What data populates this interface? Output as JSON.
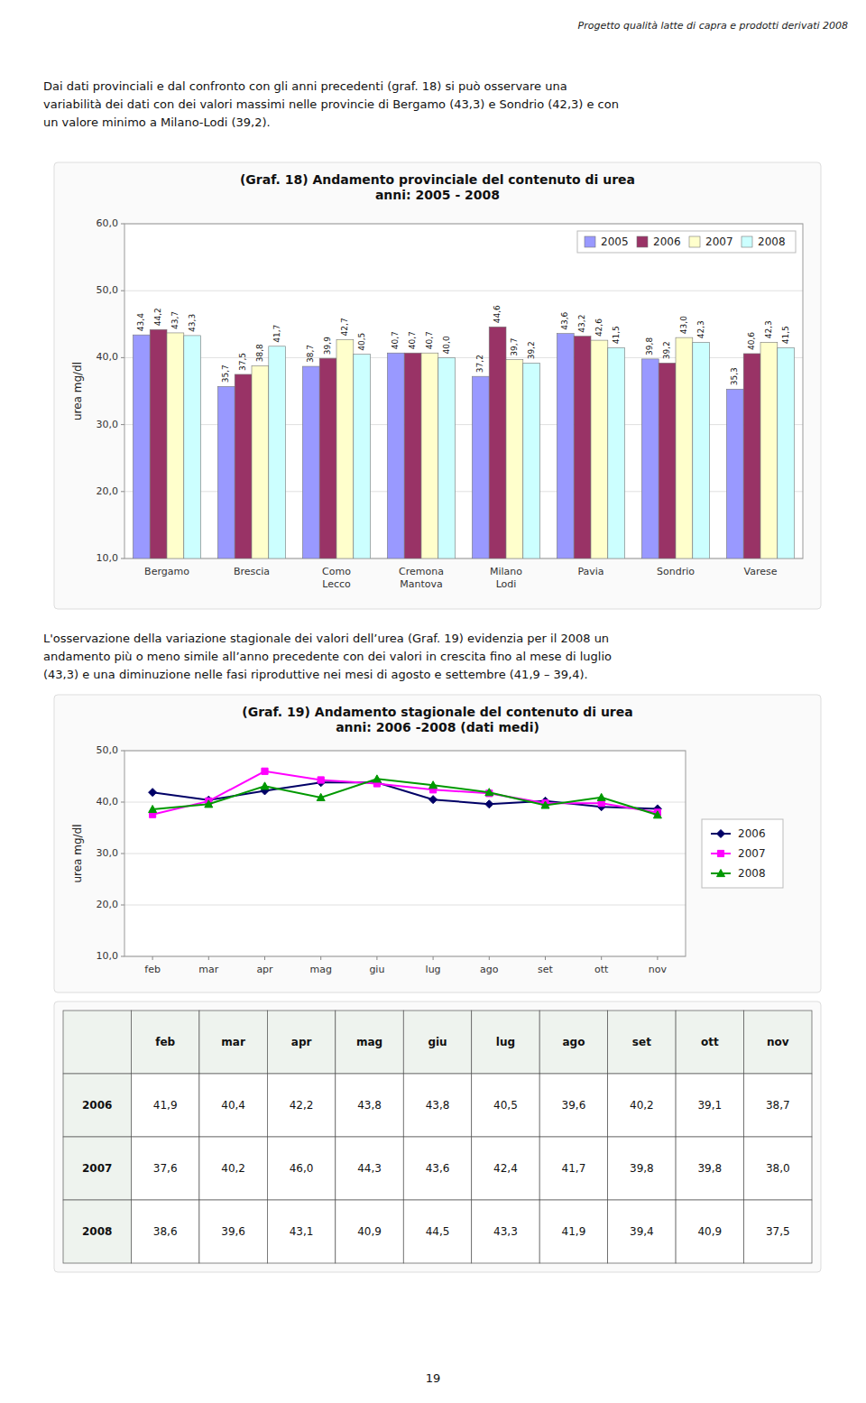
{
  "page_title": "Progetto qualità latte di capra e prodotti derivati 2008",
  "paragraphs": [
    "Dai dati provinciali e dal confronto con gli anni precedenti (graf. 18) si può osservare una\nvariabilità dei dati con dei valori massimi nelle provincie di Bergamo (43,3) e Sondrio (42,3) e con\nun valore minimo a Milano-Lodi (39,2).",
    "L'osservazione della variazione stagionale dei valori dell’urea (Graf. 19) evidenzia per il 2008 un\nandamento più o meno simile all’anno precedente con dei valori in crescita fino al mese di luglio\n(43,3) e una diminuzione nelle fasi riproduttive nei mesi di agosto e settembre (41,9 – 39,4)."
  ],
  "page_number": "19",
  "chart_data": [
    {
      "type": "bar",
      "title": "(Graf. 18)  Andamento provinciale del contenuto di urea\nanni: 2005 - 2008",
      "y_label": "urea mg/dl",
      "categories": [
        "Bergamo",
        "Brescia",
        "Como\nLecco",
        "Cremona\nMantova",
        "Milano\nLodi",
        "Pavia",
        "Sondrio",
        "Varese"
      ],
      "series": [
        {
          "name": "2005",
          "color": "#9999ff",
          "values": [
            43.4,
            35.7,
            38.7,
            40.7,
            37.2,
            43.6,
            39.8,
            35.3
          ],
          "value_labels": [
            "43,4",
            "35,7",
            "38,7",
            "40,7",
            "37,2",
            "43,6",
            "39,8",
            "35,3"
          ]
        },
        {
          "name": "2006",
          "color": "#993366",
          "values": [
            44.2,
            37.5,
            39.9,
            40.7,
            44.6,
            43.2,
            39.2,
            40.6
          ],
          "value_labels": [
            "44,2",
            "37,5",
            "39,9",
            "40,7",
            "44,6",
            "43,2",
            "39,2",
            "40,6"
          ]
        },
        {
          "name": "2007",
          "color": "#ffffcc",
          "values": [
            43.7,
            38.8,
            42.7,
            40.7,
            39.7,
            42.6,
            43.0,
            42.3
          ],
          "value_labels": [
            "43,7",
            "38,8",
            "42,7",
            "40,7",
            "39,7",
            "42,6",
            "43,0",
            "42,3"
          ]
        },
        {
          "name": "2008",
          "color": "#ccffff",
          "values": [
            43.3,
            41.7,
            40.5,
            40.0,
            39.2,
            41.5,
            42.3,
            41.5
          ],
          "value_labels": [
            "43,3",
            "41,7",
            "40,5",
            "40,0",
            "39,2",
            "41,5",
            "42,3",
            "41,5"
          ]
        }
      ],
      "ylim": [
        10.0,
        60.0
      ],
      "yticks": [
        {
          "value": 10.0,
          "label": "10,0"
        },
        {
          "value": 20.0,
          "label": "20,0"
        },
        {
          "value": 30.0,
          "label": "30,0"
        },
        {
          "value": 40.0,
          "label": "40,0"
        },
        {
          "value": 50.0,
          "label": "50,0"
        },
        {
          "value": 60.0,
          "label": "60,0"
        }
      ],
      "grid": true,
      "legend": "upper right",
      "data_labels": true
    },
    {
      "type": "line",
      "title": "(Graf. 19)  Andamento stagionale del contenuto di urea\nanni: 2006 -2008 (dati medi)",
      "y_label": "urea mg/dl",
      "categories": [
        "feb",
        "mar",
        "apr",
        "mag",
        "giu",
        "lug",
        "ago",
        "set",
        "ott",
        "nov"
      ],
      "series": [
        {
          "name": "2006",
          "color": "#000066",
          "marker": "diamond",
          "values": [
            41.9,
            40.4,
            42.2,
            43.8,
            43.8,
            40.5,
            39.6,
            40.2,
            39.1,
            38.7
          ]
        },
        {
          "name": "2007",
          "color": "#ff00ff",
          "marker": "square",
          "values": [
            37.6,
            40.2,
            46.0,
            44.3,
            43.6,
            42.4,
            41.7,
            39.8,
            39.8,
            38.0
          ]
        },
        {
          "name": "2008",
          "color": "#009900",
          "marker": "triangle",
          "values": [
            38.6,
            39.6,
            43.1,
            40.9,
            44.5,
            43.3,
            41.9,
            39.4,
            40.9,
            37.5
          ]
        }
      ],
      "ylim": [
        10.0,
        50.0
      ],
      "yticks": [
        {
          "value": 10.0,
          "label": "10,0"
        },
        {
          "value": 20.0,
          "label": "20,0"
        },
        {
          "value": 30.0,
          "label": "30,0"
        },
        {
          "value": 40.0,
          "label": "40,0"
        },
        {
          "value": 50.0,
          "label": "50,0"
        }
      ],
      "grid": true,
      "legend": "right"
    },
    {
      "type": "table",
      "columns": [
        "feb",
        "mar",
        "apr",
        "mag",
        "giu",
        "lug",
        "ago",
        "set",
        "ott",
        "nov"
      ],
      "rows": [
        "2006",
        "2007",
        "2008"
      ],
      "values": [
        [
          41.9,
          40.4,
          42.2,
          43.8,
          43.8,
          40.5,
          39.6,
          40.2,
          39.1,
          38.7
        ],
        [
          37.6,
          40.2,
          46.0,
          44.3,
          43.6,
          42.4,
          41.7,
          39.8,
          39.8,
          38.0
        ],
        [
          38.6,
          39.6,
          43.1,
          40.9,
          44.5,
          43.3,
          41.9,
          39.4,
          40.9,
          37.5
        ]
      ],
      "value_labels": [
        [
          "41,9",
          "40,4",
          "42,2",
          "43,8",
          "43,8",
          "40,5",
          "39,6",
          "40,2",
          "39,1",
          "38,7"
        ],
        [
          "37,6",
          "40,2",
          "46,0",
          "44,3",
          "43,6",
          "42,4",
          "41,7",
          "39,8",
          "39,8",
          "38,0"
        ],
        [
          "38,6",
          "39,6",
          "43,1",
          "40,9",
          "44,5",
          "43,3",
          "41,9",
          "39,4",
          "40,9",
          "37,5"
        ]
      ]
    }
  ]
}
